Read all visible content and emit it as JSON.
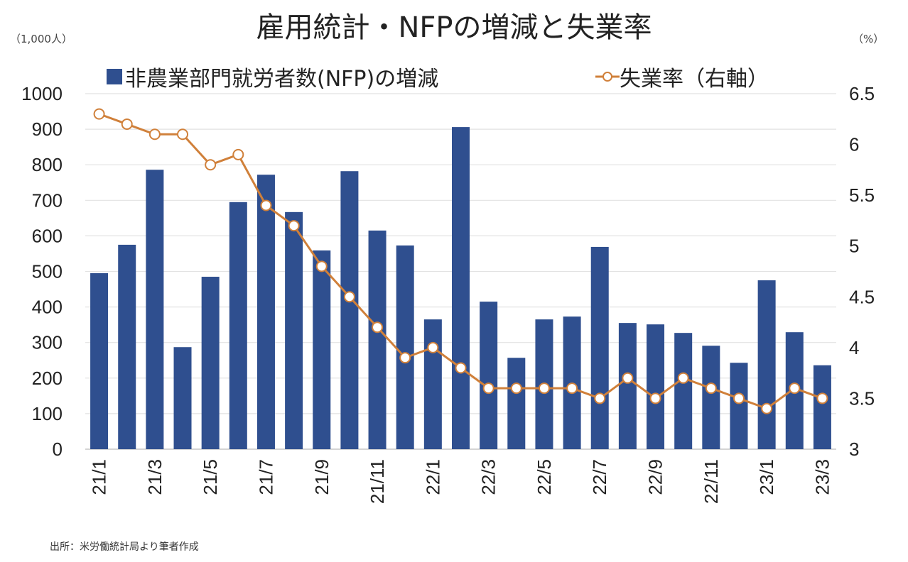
{
  "chart_data": {
    "type": "bar+line",
    "title": "雇用統計・NFPの増減と失業率",
    "left_unit": "（1,000人）",
    "right_unit": "（%）",
    "categories": [
      "21/1",
      "21/2",
      "21/3",
      "21/4",
      "21/5",
      "21/6",
      "21/7",
      "21/8",
      "21/9",
      "21/10",
      "21/11",
      "21/12",
      "22/1",
      "22/2",
      "22/3",
      "22/4",
      "22/5",
      "22/6",
      "22/7",
      "22/8",
      "22/9",
      "22/10",
      "22/11",
      "22/12",
      "23/1",
      "23/2",
      "23/3"
    ],
    "x_tick_labels": [
      "21/1",
      "",
      "21/3",
      "",
      "21/5",
      "",
      "21/7",
      "",
      "21/9",
      "",
      "21/11",
      "",
      "22/1",
      "",
      "22/3",
      "",
      "22/5",
      "",
      "22/7",
      "",
      "22/9",
      "",
      "22/11",
      "",
      "23/1",
      "",
      "23/3"
    ],
    "series": [
      {
        "name": "非農業部門就労者数(NFP)の増減",
        "type": "bar",
        "axis": "left",
        "color": "#2f4f8f",
        "values": [
          495,
          575,
          786,
          287,
          485,
          695,
          772,
          667,
          559,
          782,
          615,
          573,
          365,
          906,
          415,
          257,
          365,
          373,
          569,
          355,
          351,
          327,
          291,
          243,
          475,
          329,
          236
        ]
      },
      {
        "name": "失業率（右軸）",
        "type": "line",
        "axis": "right",
        "color": "#d0803a",
        "values": [
          6.3,
          6.2,
          6.1,
          6.1,
          5.8,
          5.9,
          5.4,
          5.2,
          4.8,
          4.5,
          4.2,
          3.9,
          4.0,
          3.8,
          3.6,
          3.6,
          3.6,
          3.6,
          3.5,
          3.7,
          3.5,
          3.7,
          3.6,
          3.5,
          3.4,
          3.6,
          3.5
        ]
      }
    ],
    "y_left": {
      "range": [
        0,
        1000
      ],
      "ticks": [
        "0",
        "100",
        "200",
        "300",
        "400",
        "500",
        "600",
        "700",
        "800",
        "900",
        "1000"
      ]
    },
    "y_right": {
      "range": [
        3,
        6.5
      ],
      "ticks": [
        "3",
        "3.5",
        "4",
        "4.5",
        "5",
        "5.5",
        "6",
        "6.5"
      ]
    },
    "grid": true,
    "legend_placement": "top",
    "source": "出所：米労働統計局より筆者作成"
  }
}
